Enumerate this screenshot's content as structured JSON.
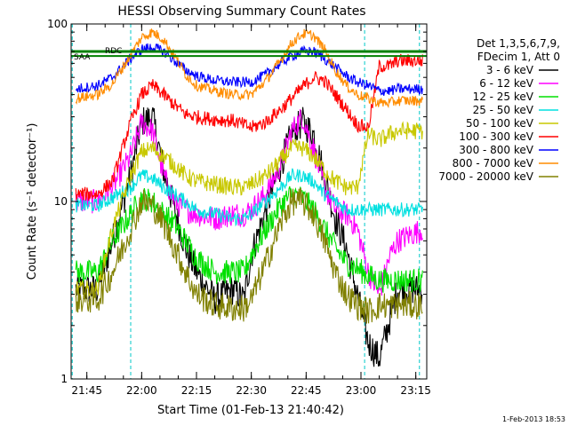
{
  "chart_data": {
    "type": "line",
    "title": "HESSI Observing Summary Count Rates",
    "xlabel": "Start Time (01-Feb-13 21:40:42)",
    "ylabel": "Count Rate (s⁻¹ detector⁻¹)",
    "y_scale": "log",
    "ylim": [
      1,
      100
    ],
    "xlim": [
      "21:40:42",
      "23:18:00"
    ],
    "x_tick_labels": [
      "21:45",
      "22:00",
      "22:15",
      "22:30",
      "22:45",
      "23:00",
      "23:15"
    ],
    "y_tick_labels": [
      "1",
      "10",
      "100"
    ],
    "legend_header": [
      "Det 1,3,5,6,7,9,",
      "FDecim 1, Att 0"
    ],
    "timestamp": "1-Feb-2013 18:53",
    "flags": [
      {
        "label": "RDC",
        "color": "#008000",
        "t": "21:45"
      },
      {
        "label": "SAA",
        "color": "#008000",
        "t": "21:41"
      }
    ],
    "dashed_markers": {
      "color": "#00c8c8",
      "times": [
        "21:41",
        "21:57",
        "23:01",
        "23:16"
      ]
    },
    "series": [
      {
        "name": "3 - 6 keV",
        "color": "#000000",
        "x": [
          "21:42",
          "21:48",
          "21:52",
          "21:57",
          "22:00",
          "22:03",
          "22:06",
          "22:09",
          "22:12",
          "22:15",
          "22:20",
          "22:25",
          "22:28",
          "22:30",
          "22:34",
          "22:38",
          "22:41",
          "22:44",
          "22:47",
          "22:50",
          "22:53",
          "22:56",
          "22:59",
          "23:02",
          "23:05",
          "23:08",
          "23:10",
          "23:17"
        ],
        "y": [
          3.2,
          3.2,
          6,
          14,
          28,
          30,
          15,
          9,
          5.5,
          4,
          2.8,
          3.2,
          2.8,
          5,
          9,
          16,
          24,
          28,
          24,
          14,
          8,
          5.5,
          3,
          1.6,
          1.3,
          2.2,
          3.2,
          3.2
        ]
      },
      {
        "name": "6 - 12 keV",
        "color": "#ff00ff",
        "x": [
          "21:42",
          "21:48",
          "21:52",
          "21:57",
          "22:00",
          "22:03",
          "22:06",
          "22:09",
          "22:12",
          "22:15",
          "22:20",
          "22:25",
          "22:28",
          "22:30",
          "22:34",
          "22:38",
          "22:41",
          "22:44",
          "22:47",
          "22:50",
          "22:53",
          "22:56",
          "22:59",
          "23:02",
          "23:05",
          "23:08",
          "23:10",
          "23:17"
        ],
        "y": [
          10,
          10,
          12,
          18,
          28,
          25,
          14,
          10,
          9,
          8.5,
          8,
          8.5,
          8.5,
          9,
          11,
          16,
          25,
          30,
          20,
          12,
          9,
          8.5,
          7,
          4,
          3,
          5,
          6,
          7
        ]
      },
      {
        "name": "12 - 25 keV",
        "color": "#00e000",
        "x": [
          "21:42",
          "21:48",
          "21:52",
          "21:57",
          "22:00",
          "22:03",
          "22:06",
          "22:09",
          "22:12",
          "22:15",
          "22:20",
          "22:25",
          "22:28",
          "22:30",
          "22:34",
          "22:38",
          "22:41",
          "22:44",
          "22:47",
          "22:50",
          "22:53",
          "22:56",
          "22:59",
          "23:02",
          "23:05",
          "23:08",
          "23:10",
          "23:17"
        ],
        "y": [
          4,
          4,
          6,
          8.5,
          10.5,
          10,
          8.5,
          7.5,
          6,
          4.8,
          4,
          4,
          4,
          5,
          7,
          9.5,
          11,
          10.5,
          9,
          7,
          5.5,
          4.5,
          4.2,
          3.8,
          3.6,
          3.6,
          3.6,
          3.6
        ]
      },
      {
        "name": "25 - 50 keV",
        "color": "#00e0e0",
        "x": [
          "21:42",
          "21:48",
          "21:52",
          "21:57",
          "22:00",
          "22:03",
          "22:06",
          "22:09",
          "22:12",
          "22:15",
          "22:20",
          "22:25",
          "22:28",
          "22:30",
          "22:34",
          "22:38",
          "22:41",
          "22:44",
          "22:47",
          "22:50",
          "22:53",
          "22:56",
          "22:59",
          "23:02",
          "23:05",
          "23:08",
          "23:10",
          "23:17"
        ],
        "y": [
          9.5,
          9.5,
          10.5,
          12,
          14,
          13.5,
          12,
          11,
          10,
          9,
          8.5,
          8,
          8,
          8.5,
          10,
          12,
          14,
          14,
          13,
          11,
          10,
          9,
          9,
          9,
          9,
          9,
          9,
          9
        ]
      },
      {
        "name": "50 - 100 keV",
        "color": "#c8c800",
        "x": [
          "21:42",
          "21:48",
          "21:52",
          "21:57",
          "22:00",
          "22:03",
          "22:06",
          "22:09",
          "22:12",
          "22:15",
          "22:20",
          "22:25",
          "22:28",
          "22:30",
          "22:34",
          "22:38",
          "22:41",
          "22:44",
          "22:47",
          "22:50",
          "22:53",
          "22:56",
          "22:59",
          "23:02",
          "23:05",
          "23:08",
          "23:10",
          "23:17"
        ],
        "y": [
          3.2,
          3.2,
          7,
          14,
          19,
          20,
          18,
          16,
          14,
          13,
          12.5,
          12,
          12,
          12.5,
          14,
          17,
          20,
          20,
          18,
          15,
          13,
          12,
          12,
          24,
          22,
          24,
          25,
          25
        ]
      },
      {
        "name": "100 - 300 keV",
        "color": "#ff0000",
        "x": [
          "21:42",
          "21:48",
          "21:52",
          "21:57",
          "22:00",
          "22:03",
          "22:06",
          "22:09",
          "22:12",
          "22:15",
          "22:20",
          "22:25",
          "22:28",
          "22:30",
          "22:34",
          "22:38",
          "22:41",
          "22:44",
          "22:47",
          "22:50",
          "22:53",
          "22:56",
          "22:59",
          "23:02",
          "23:05",
          "23:08",
          "23:10",
          "23:17"
        ],
        "y": [
          11,
          11,
          13,
          28,
          40,
          45,
          40,
          35,
          31,
          30,
          29,
          28.5,
          27,
          26,
          28,
          33,
          38,
          44,
          50,
          48,
          40,
          33,
          27,
          26,
          58,
          58,
          62,
          62
        ]
      },
      {
        "name": "300 - 800 keV",
        "color": "#0000ff",
        "x": [
          "21:42",
          "21:48",
          "21:52",
          "21:57",
          "22:00",
          "22:03",
          "22:06",
          "22:09",
          "22:12",
          "22:15",
          "22:20",
          "22:25",
          "22:28",
          "22:30",
          "22:34",
          "22:38",
          "22:41",
          "22:44",
          "22:47",
          "22:50",
          "22:53",
          "22:56",
          "22:59",
          "23:02",
          "23:05",
          "23:08",
          "23:10",
          "23:17"
        ],
        "y": [
          43,
          45,
          50,
          64,
          72,
          74,
          70,
          62,
          55,
          51,
          48,
          47,
          47,
          47,
          52,
          60,
          66,
          70,
          70,
          64,
          57,
          51,
          47,
          45,
          42,
          42,
          43,
          43
        ]
      },
      {
        "name": "800 - 7000 keV",
        "color": "#ff8c00",
        "x": [
          "21:42",
          "21:48",
          "21:52",
          "21:57",
          "22:00",
          "22:03",
          "22:06",
          "22:09",
          "22:12",
          "22:15",
          "22:20",
          "22:25",
          "22:28",
          "22:30",
          "22:34",
          "22:38",
          "22:41",
          "22:44",
          "22:47",
          "22:50",
          "22:53",
          "22:56",
          "22:59",
          "23:02",
          "23:05",
          "23:08",
          "23:10",
          "23:17"
        ],
        "y": [
          38,
          40,
          46,
          67,
          84,
          90,
          82,
          66,
          52,
          45,
          42,
          40,
          40,
          40,
          48,
          62,
          78,
          88,
          86,
          72,
          55,
          45,
          40,
          38,
          36,
          36,
          37,
          37
        ]
      },
      {
        "name": "7000 - 20000 keV",
        "color": "#808000",
        "x": [
          "21:42",
          "21:48",
          "21:52",
          "21:57",
          "22:00",
          "22:03",
          "22:06",
          "22:09",
          "22:12",
          "22:15",
          "22:20",
          "22:25",
          "22:28",
          "22:30",
          "22:34",
          "22:38",
          "22:41",
          "22:44",
          "22:47",
          "22:50",
          "22:53",
          "22:56",
          "22:59",
          "23:02",
          "23:05",
          "23:08",
          "23:10",
          "23:17"
        ],
        "y": [
          2.8,
          2.8,
          4,
          7,
          10,
          9.5,
          7.5,
          5.5,
          4,
          3,
          2.6,
          2.5,
          2.5,
          2.8,
          4.5,
          7.5,
          10,
          10,
          8.5,
          6,
          4,
          3,
          2.6,
          2.4,
          2.6,
          2.6,
          2.6,
          2.6
        ]
      }
    ]
  }
}
